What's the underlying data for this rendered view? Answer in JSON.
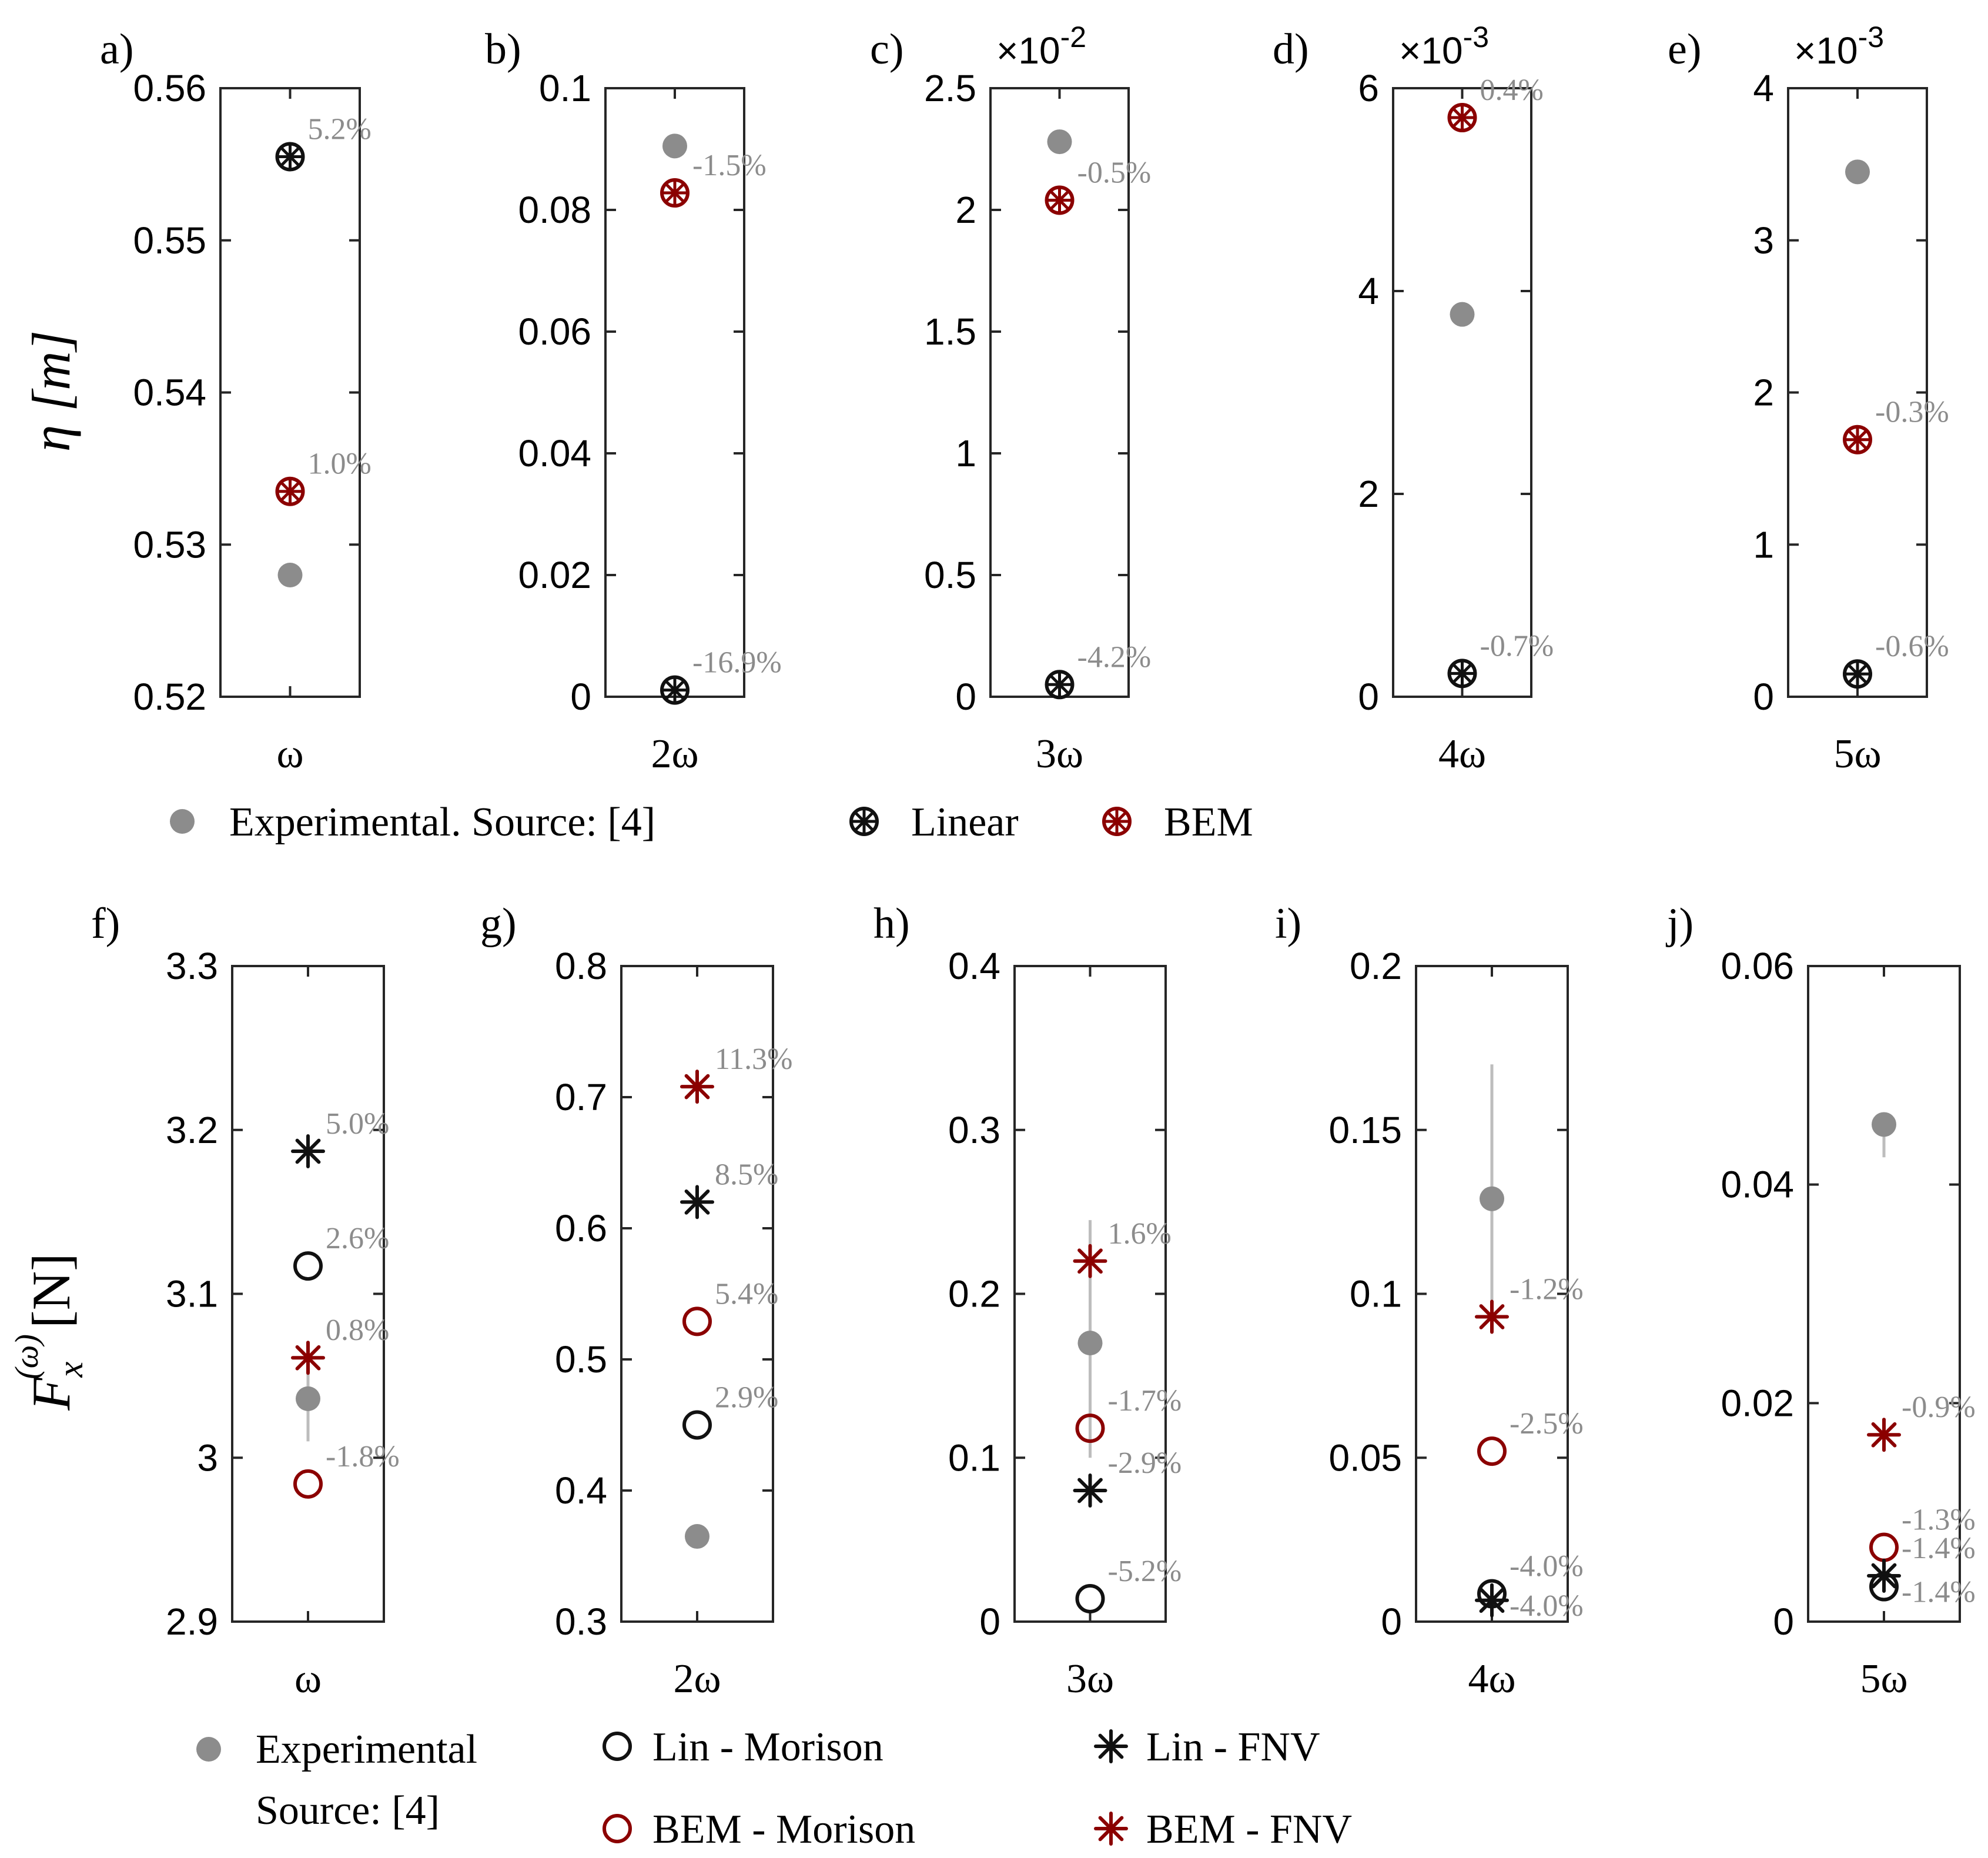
{
  "colors": {
    "experimental": "#8c8c8c",
    "linear": "#111111",
    "bem": "#8b0000",
    "errorbar": "#bdbdbd",
    "axis": "#262626"
  },
  "top_legend": [
    {
      "marker": "dot",
      "color": "#8c8c8c",
      "label": "Experimental. Source: [4]"
    },
    {
      "marker": "asterisk-circle",
      "color": "#111111",
      "label": "Linear"
    },
    {
      "marker": "asterisk-circle",
      "color": "#8b0000",
      "label": "BEM"
    }
  ],
  "bottom_legend": [
    {
      "marker": "dot",
      "color": "#8c8c8c",
      "label": "Experimental",
      "label2": "Source: [4]"
    },
    {
      "marker": "circle",
      "color": "#111111",
      "label": "Lin - Morison"
    },
    {
      "marker": "circle",
      "color": "#8b0000",
      "label": "BEM - Morison"
    },
    {
      "marker": "asterisk",
      "color": "#111111",
      "label": "Lin - FNV"
    },
    {
      "marker": "asterisk",
      "color": "#8b0000",
      "label": "BEM - FNV"
    }
  ],
  "y_labels": {
    "top": "η [m]",
    "bottom": "F",
    "bottom_sub": "x",
    "bottom_sup": "(ω)",
    "bottom_unit": "[N]"
  },
  "chart_data": [
    {
      "id": "a",
      "panel_label": "a)",
      "type": "scatter",
      "xlabel": "ω",
      "ylim": [
        0.52,
        0.56
      ],
      "yticks": [
        0.52,
        0.53,
        0.54,
        0.55,
        0.56
      ],
      "ytick_labels": [
        "0.52",
        "0.53",
        "0.54",
        "0.55",
        "0.56"
      ],
      "multiplier": "",
      "points": [
        {
          "series": "Experimental",
          "y": 0.528,
          "marker": "dot",
          "color": "#8c8c8c"
        },
        {
          "series": "Linear",
          "y": 0.5555,
          "marker": "asterisk-circle",
          "color": "#111111",
          "label": "5.2%"
        },
        {
          "series": "BEM",
          "y": 0.5335,
          "marker": "asterisk-circle",
          "color": "#8b0000",
          "label": "1.0%"
        }
      ]
    },
    {
      "id": "b",
      "panel_label": "b)",
      "type": "scatter",
      "xlabel": "2ω",
      "ylim": [
        0,
        0.1
      ],
      "yticks": [
        0,
        0.02,
        0.04,
        0.06,
        0.08,
        0.1
      ],
      "ytick_labels": [
        "0",
        "0.02",
        "0.04",
        "0.06",
        "0.08",
        "0.1"
      ],
      "multiplier": "",
      "points": [
        {
          "series": "Experimental",
          "y": 0.0905,
          "marker": "dot",
          "color": "#8c8c8c"
        },
        {
          "series": "Linear",
          "y": 0.0011,
          "marker": "asterisk-circle",
          "color": "#111111",
          "label": "-16.9%"
        },
        {
          "series": "BEM",
          "y": 0.0828,
          "marker": "asterisk-circle",
          "color": "#8b0000",
          "label": "-1.5%"
        }
      ]
    },
    {
      "id": "c",
      "panel_label": "c)",
      "type": "scatter",
      "xlabel": "3ω",
      "ylim": [
        0,
        2.5
      ],
      "yticks": [
        0,
        0.5,
        1,
        1.5,
        2,
        2.5
      ],
      "ytick_labels": [
        "0",
        "0.5",
        "1",
        "1.5",
        "2",
        "2.5"
      ],
      "multiplier": "×10",
      "multiplier_exp": "-2",
      "points": [
        {
          "series": "Experimental",
          "y": 2.28,
          "marker": "dot",
          "color": "#8c8c8c"
        },
        {
          "series": "Linear",
          "y": 0.05,
          "marker": "asterisk-circle",
          "color": "#111111",
          "label": "-4.2%"
        },
        {
          "series": "BEM",
          "y": 2.04,
          "marker": "asterisk-circle",
          "color": "#8b0000",
          "label": "-0.5%"
        }
      ]
    },
    {
      "id": "d",
      "panel_label": "d)",
      "type": "scatter",
      "xlabel": "4ω",
      "ylim": [
        0,
        6
      ],
      "yticks": [
        0,
        2,
        4,
        6
      ],
      "ytick_labels": [
        "0",
        "2",
        "4",
        "6"
      ],
      "multiplier": "×10",
      "multiplier_exp": "-3",
      "points": [
        {
          "series": "Experimental",
          "y": 3.77,
          "marker": "dot",
          "color": "#8c8c8c"
        },
        {
          "series": "Linear",
          "y": 0.23,
          "marker": "asterisk-circle",
          "color": "#111111",
          "label": "-0.7%"
        },
        {
          "series": "BEM",
          "y": 5.71,
          "marker": "asterisk-circle",
          "color": "#8b0000",
          "label": "0.4%"
        }
      ]
    },
    {
      "id": "e",
      "panel_label": "e)",
      "type": "scatter",
      "xlabel": "5ω",
      "ylim": [
        0,
        4
      ],
      "yticks": [
        0,
        1,
        2,
        3,
        4
      ],
      "ytick_labels": [
        "0",
        "1",
        "2",
        "3",
        "4"
      ],
      "multiplier": "×10",
      "multiplier_exp": "-3",
      "points": [
        {
          "series": "Experimental",
          "y": 3.45,
          "marker": "dot",
          "color": "#8c8c8c"
        },
        {
          "series": "Linear",
          "y": 0.15,
          "marker": "asterisk-circle",
          "color": "#111111",
          "label": "-0.6%"
        },
        {
          "series": "BEM",
          "y": 1.69,
          "marker": "asterisk-circle",
          "color": "#8b0000",
          "label": "-0.3%"
        }
      ]
    },
    {
      "id": "f",
      "panel_label": "f)",
      "type": "scatter",
      "xlabel": "ω",
      "ylim": [
        2.9,
        3.3
      ],
      "yticks": [
        2.9,
        3.0,
        3.1,
        3.2,
        3.3
      ],
      "ytick_labels": [
        "2.9",
        "3",
        "3.1",
        "3.2",
        "3.3"
      ],
      "multiplier": "",
      "points": [
        {
          "series": "Experimental",
          "y": 3.036,
          "marker": "dot",
          "color": "#8c8c8c",
          "err": [
            3.01,
            3.06
          ]
        },
        {
          "series": "Lin - FNV",
          "y": 3.187,
          "marker": "asterisk",
          "color": "#111111",
          "label": "5.0%"
        },
        {
          "series": "Lin - Morison",
          "y": 3.117,
          "marker": "circle",
          "color": "#111111",
          "label": "2.6%"
        },
        {
          "series": "BEM - FNV",
          "y": 3.061,
          "marker": "asterisk",
          "color": "#8b0000",
          "label": "0.8%"
        },
        {
          "series": "BEM - Morison",
          "y": 2.984,
          "marker": "circle",
          "color": "#8b0000",
          "label": "-1.8%"
        }
      ]
    },
    {
      "id": "g",
      "panel_label": "g)",
      "type": "scatter",
      "xlabel": "2ω",
      "ylim": [
        0.3,
        0.8
      ],
      "yticks": [
        0.3,
        0.4,
        0.5,
        0.6,
        0.7,
        0.8
      ],
      "ytick_labels": [
        "0.3",
        "0.4",
        "0.5",
        "0.6",
        "0.7",
        "0.8"
      ],
      "multiplier": "",
      "points": [
        {
          "series": "Experimental",
          "y": 0.365,
          "marker": "dot",
          "color": "#8c8c8c"
        },
        {
          "series": "BEM - FNV",
          "y": 0.708,
          "marker": "asterisk",
          "color": "#8b0000",
          "label": "11.3%"
        },
        {
          "series": "Lin - FNV",
          "y": 0.62,
          "marker": "asterisk",
          "color": "#111111",
          "label": "8.5%"
        },
        {
          "series": "BEM - Morison",
          "y": 0.529,
          "marker": "circle",
          "color": "#8b0000",
          "label": "5.4%"
        },
        {
          "series": "Lin - Morison",
          "y": 0.45,
          "marker": "circle",
          "color": "#111111",
          "label": "2.9%"
        }
      ]
    },
    {
      "id": "h",
      "panel_label": "h)",
      "type": "scatter",
      "xlabel": "3ω",
      "ylim": [
        0,
        0.4
      ],
      "yticks": [
        0,
        0.1,
        0.2,
        0.3,
        0.4
      ],
      "ytick_labels": [
        "0",
        "0.1",
        "0.2",
        "0.3",
        "0.4"
      ],
      "multiplier": "",
      "points": [
        {
          "series": "Experimental",
          "y": 0.17,
          "marker": "dot",
          "color": "#8c8c8c",
          "err": [
            0.1,
            0.245
          ]
        },
        {
          "series": "BEM - FNV",
          "y": 0.22,
          "marker": "asterisk",
          "color": "#8b0000",
          "label": "1.6%"
        },
        {
          "series": "BEM - Morison",
          "y": 0.118,
          "marker": "circle",
          "color": "#8b0000",
          "label": "-1.7%"
        },
        {
          "series": "Lin - FNV",
          "y": 0.08,
          "marker": "asterisk",
          "color": "#111111",
          "label": "-2.9%"
        },
        {
          "series": "Lin - Morison",
          "y": 0.014,
          "marker": "circle",
          "color": "#111111",
          "label": "-5.2%"
        }
      ]
    },
    {
      "id": "i",
      "panel_label": "i)",
      "type": "scatter",
      "xlabel": "4ω",
      "ylim": [
        0,
        0.2
      ],
      "yticks": [
        0,
        0.05,
        0.1,
        0.15,
        0.2
      ],
      "ytick_labels": [
        "0",
        "0.05",
        "0.1",
        "0.15",
        "0.2"
      ],
      "multiplier": "",
      "points": [
        {
          "series": "Experimental",
          "y": 0.129,
          "marker": "dot",
          "color": "#8c8c8c",
          "err": [
            0.09,
            0.17
          ]
        },
        {
          "series": "BEM - FNV",
          "y": 0.093,
          "marker": "asterisk",
          "color": "#8b0000",
          "label": "-1.2%"
        },
        {
          "series": "BEM - Morison",
          "y": 0.052,
          "marker": "circle",
          "color": "#8b0000",
          "label": "-2.5%"
        },
        {
          "series": "Lin - Morison",
          "y": 0.0085,
          "marker": "circle",
          "color": "#111111",
          "label": "-4.0%"
        },
        {
          "series": "Lin - FNV",
          "y": 0.0065,
          "marker": "asterisk",
          "color": "#111111",
          "label": "-4.0%",
          "label_below": true
        }
      ]
    },
    {
      "id": "j",
      "panel_label": "j)",
      "type": "scatter",
      "xlabel": "5ω",
      "ylim": [
        0,
        0.06
      ],
      "yticks": [
        0,
        0.02,
        0.04,
        0.06
      ],
      "ytick_labels": [
        "0",
        "0.02",
        "0.04",
        "0.06"
      ],
      "multiplier": "",
      "points": [
        {
          "series": "Experimental",
          "y": 0.0455,
          "marker": "dot",
          "color": "#8c8c8c",
          "err": [
            0.0425,
            0.0465
          ]
        },
        {
          "series": "BEM - FNV",
          "y": 0.0171,
          "marker": "asterisk",
          "color": "#8b0000",
          "label": "-0.9%"
        },
        {
          "series": "BEM - Morison",
          "y": 0.0068,
          "marker": "circle",
          "color": "#8b0000",
          "label": "-1.3%"
        },
        {
          "series": "Lin - FNV",
          "y": 0.0042,
          "marker": "asterisk",
          "color": "#111111",
          "label": "-1.4%"
        },
        {
          "series": "Lin - Morison",
          "y": 0.0032,
          "marker": "circle",
          "color": "#111111",
          "label": "-1.4%",
          "label_below": true
        }
      ]
    }
  ]
}
